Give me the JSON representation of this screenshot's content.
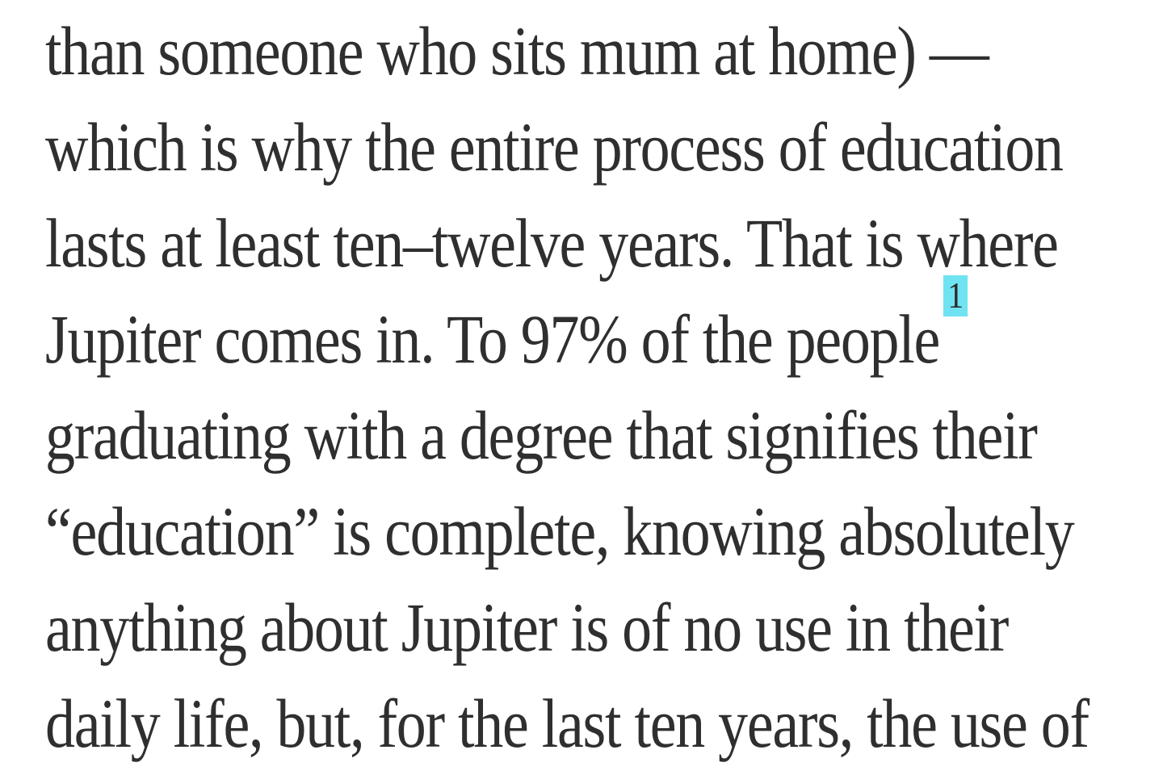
{
  "passage": {
    "lines": [
      "than someone who sits mum at home) —",
      "which is why the entire process of education",
      "lasts at least ten–twelve years. That is where",
      "Jupiter comes in. To 97% of the people",
      "graduating with a degree that signifies their",
      "“education” is complete, knowing absolutely",
      "anything about Jupiter is of no use in their",
      "daily life, but, for the last ten years, the use of"
    ],
    "footnote_marker": "1"
  },
  "colors": {
    "text": "#2f2f2f",
    "footnote_highlight": "#6fe3f2",
    "background": "#ffffff"
  }
}
